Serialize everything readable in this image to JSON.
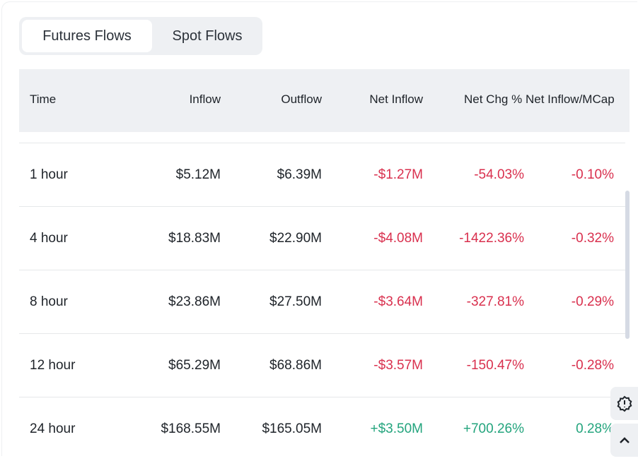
{
  "tabs": [
    {
      "label": "Futures Flows",
      "active": true
    },
    {
      "label": "Spot Flows",
      "active": false
    }
  ],
  "columns": [
    "Time",
    "Inflow",
    "Outflow",
    "Net Inflow",
    "Net Chg %",
    "Net Inflow/MCap"
  ],
  "rows": [
    {
      "time": "1 hour",
      "inflow": "$5.12M",
      "outflow": "$6.39M",
      "net": "-$1.27M",
      "chg": "-54.03%",
      "mcap": "-0.10%"
    },
    {
      "time": "4 hour",
      "inflow": "$18.83M",
      "outflow": "$22.90M",
      "net": "-$4.08M",
      "chg": "-1422.36%",
      "mcap": "-0.32%"
    },
    {
      "time": "8 hour",
      "inflow": "$23.86M",
      "outflow": "$27.50M",
      "net": "-$3.64M",
      "chg": "-327.81%",
      "mcap": "-0.29%"
    },
    {
      "time": "12 hour",
      "inflow": "$65.29M",
      "outflow": "$68.86M",
      "net": "-$3.57M",
      "chg": "-150.47%",
      "mcap": "-0.28%"
    },
    {
      "time": "24 hour",
      "inflow": "$168.55M",
      "outflow": "$165.05M",
      "net": "+$3.50M",
      "chg": "+700.26%",
      "mcap": "0.28%"
    }
  ],
  "colors": {
    "negative": "#d9304e",
    "positive": "#23a47d"
  }
}
